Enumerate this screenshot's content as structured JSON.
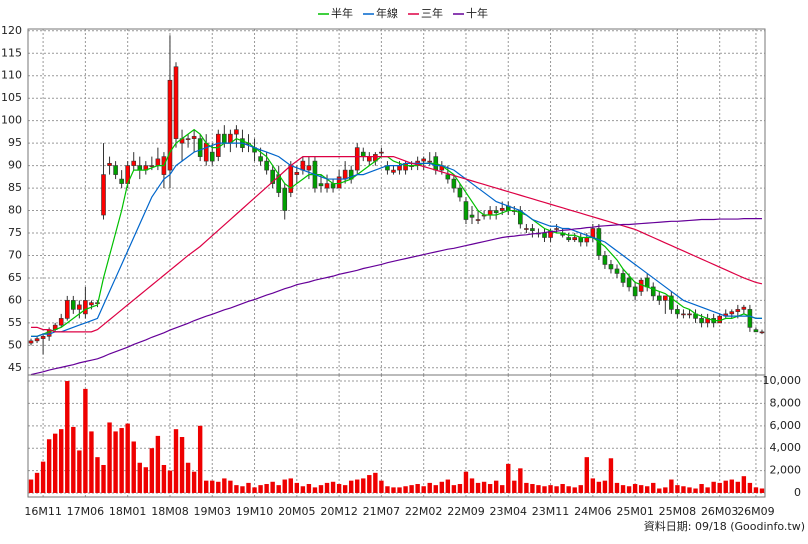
{
  "chart_data": [
    {
      "type": "candlestick",
      "categories": [
        null,
        null,
        "16M11",
        null,
        null,
        null,
        null,
        null,
        null,
        "17M06",
        null,
        null,
        null,
        null,
        null,
        null,
        "18M01",
        null,
        null,
        null,
        null,
        null,
        null,
        "18M08",
        null,
        null,
        null,
        null,
        null,
        null,
        "19M03",
        null,
        null,
        null,
        null,
        null,
        null,
        "19M10",
        null,
        null,
        null,
        null,
        null,
        null,
        "20M05",
        null,
        null,
        null,
        null,
        null,
        null,
        "20M12",
        null,
        null,
        null,
        null,
        null,
        null,
        "21M07",
        null,
        null,
        null,
        null,
        null,
        null,
        "22M02",
        null,
        null,
        null,
        null,
        null,
        null,
        "22M09",
        null,
        null,
        null,
        null,
        null,
        null,
        "23M04",
        null,
        null,
        null,
        null,
        null,
        null,
        "23M11",
        null,
        null,
        null,
        null,
        null,
        null,
        "24M06",
        null,
        null,
        null,
        null,
        null,
        null,
        "25M01",
        null,
        null,
        null,
        null,
        null,
        null,
        "25M08",
        null,
        null,
        null,
        null,
        null,
        null,
        "26M03",
        null,
        null,
        null,
        null,
        null,
        "26M09",
        null
      ],
      "open": [
        50.5,
        51,
        51.5,
        52,
        53.5,
        54.5,
        56,
        60,
        58,
        57,
        59,
        59.5,
        79,
        90,
        90,
        87,
        86,
        90,
        90,
        89,
        90,
        90,
        88,
        89,
        96,
        95,
        96,
        96,
        96,
        91,
        93,
        92,
        97,
        95,
        97,
        96,
        95,
        94,
        92,
        91,
        89,
        88,
        85,
        84,
        88,
        89,
        89,
        91,
        86,
        85,
        86,
        85,
        87,
        89,
        89,
        93,
        91,
        91,
        93,
        90,
        88.5,
        89,
        89,
        90,
        90,
        91,
        91,
        92,
        89,
        88,
        87,
        85,
        82,
        79,
        78,
        79,
        79,
        80,
        80,
        81,
        80,
        80,
        76,
        76,
        75,
        75,
        74,
        76,
        75,
        74,
        73.5,
        74,
        73,
        74,
        76,
        70,
        68,
        67,
        66,
        65,
        63,
        62,
        65,
        63,
        61,
        60,
        61,
        58,
        57,
        57,
        57,
        56,
        55,
        56,
        55,
        56.5,
        57,
        57.5,
        58,
        58,
        53.5,
        53
      ],
      "high": [
        51.5,
        52,
        52.5,
        54,
        55,
        57,
        61,
        61,
        60,
        63,
        60,
        60,
        95,
        92,
        91,
        89,
        91,
        93,
        92,
        91,
        92,
        94,
        93,
        119,
        113,
        98,
        97,
        98,
        97,
        97,
        95,
        98,
        99,
        98,
        99,
        98,
        97,
        96,
        94,
        93,
        90,
        90,
        86,
        91,
        90,
        92,
        92,
        92,
        88,
        88,
        87,
        89,
        91,
        90,
        95,
        94,
        93,
        93,
        94,
        91,
        90,
        91,
        91,
        91,
        92,
        92,
        93,
        93,
        91,
        90,
        88,
        86,
        83,
        81,
        80,
        80,
        81,
        81,
        82,
        82,
        81,
        81,
        77,
        77,
        76,
        76,
        76,
        77,
        76,
        75,
        75,
        75,
        75,
        77,
        77,
        71,
        69,
        68,
        67,
        66,
        64,
        65,
        66,
        64,
        62,
        61,
        62,
        59,
        58,
        58,
        58,
        57,
        57,
        57,
        57,
        58,
        58,
        59,
        59,
        59,
        54,
        53.5
      ],
      "low": [
        50,
        50.5,
        48,
        51,
        53,
        54,
        55.5,
        57,
        56,
        56,
        58,
        58.5,
        78,
        88,
        87,
        85,
        85,
        89,
        87,
        88,
        89,
        89,
        85,
        85,
        94,
        91,
        94,
        93,
        91,
        90,
        90,
        91,
        94,
        93,
        94,
        93,
        93,
        91,
        90,
        88,
        85,
        83,
        78,
        83,
        86,
        88,
        87,
        84,
        84,
        84,
        84,
        85,
        86,
        86,
        88,
        91,
        90,
        90,
        92,
        88,
        88,
        88,
        88,
        89,
        89,
        89,
        90,
        88,
        88,
        86,
        84,
        82,
        77,
        77,
        77,
        78,
        78,
        78,
        79,
        79,
        79,
        76,
        75,
        74,
        74,
        73,
        73,
        75,
        74,
        73,
        73,
        72,
        72,
        73,
        69,
        67,
        66,
        65,
        63,
        62,
        60,
        61,
        62,
        60,
        59,
        57,
        57,
        56,
        56,
        56,
        55,
        54,
        54,
        54,
        55,
        56,
        56,
        56,
        57,
        53,
        53,
        52.5
      ],
      "close": [
        51,
        51.5,
        52,
        53.5,
        54.5,
        56,
        60,
        58,
        59,
        60,
        59.5,
        59.5,
        88,
        90.5,
        88,
        86,
        90,
        91,
        89,
        90,
        90,
        91.5,
        92,
        109,
        112,
        96,
        96,
        96.5,
        92,
        95,
        91,
        97,
        95,
        97,
        98,
        94,
        95,
        93,
        91,
        89,
        86,
        84,
        80,
        90,
        88.5,
        91,
        90,
        85,
        85.5,
        86,
        85,
        87.5,
        89,
        87,
        94,
        92,
        92,
        92.5,
        93,
        89,
        89,
        90,
        90.5,
        90,
        91,
        91.5,
        91,
        89,
        90,
        87,
        85,
        83,
        78,
        78.5,
        78,
        79,
        80,
        79.5,
        80.5,
        80,
        80,
        77,
        76,
        75.5,
        75,
        74,
        75.5,
        76,
        74.5,
        73.5,
        74,
        73,
        74,
        76,
        70,
        68,
        67,
        66,
        64,
        63,
        61,
        64.5,
        63,
        61,
        60,
        61,
        58,
        57,
        57,
        57,
        56,
        55,
        56,
        55,
        56.5,
        57,
        57.5,
        58,
        58.5,
        54,
        53,
        53
      ],
      "up_color": "#ff0000",
      "down_color": "#00a000",
      "series": [
        {
          "name": "半年",
          "color": "#00c000",
          "values": [
            52,
            52,
            52.5,
            53,
            53.5,
            54,
            55,
            56,
            57,
            58,
            58.5,
            59,
            65,
            70,
            75,
            80,
            86,
            89,
            89,
            89,
            89.5,
            90,
            90,
            93,
            95,
            96,
            97,
            98,
            97,
            95,
            94,
            94,
            95,
            95,
            96,
            95.5,
            95,
            94,
            93,
            92,
            90,
            88,
            86,
            85,
            86,
            87,
            88,
            88,
            88,
            87,
            86,
            86,
            86.5,
            87,
            88,
            89,
            90,
            91,
            92,
            92,
            91,
            90.5,
            90,
            90,
            90,
            90.5,
            90.5,
            90.5,
            90,
            89,
            88,
            86,
            84,
            82,
            80,
            79,
            79,
            79,
            79.5,
            80,
            80,
            79.5,
            79,
            78,
            77,
            76,
            75.5,
            75,
            75,
            74.5,
            74.5,
            74,
            74,
            74,
            73,
            72,
            70.5,
            69,
            67,
            65.5,
            64,
            63.5,
            63,
            62.5,
            62,
            61.5,
            60.5,
            59.5,
            58.5,
            58,
            57,
            56.5,
            56,
            55.5,
            55.5,
            56,
            56,
            56.5,
            57,
            56.5,
            56,
            56
          ]
        },
        {
          "name": "年線",
          "color": "#0066cc",
          "values": [
            52,
            52,
            52.5,
            52.5,
            53,
            53,
            53.5,
            54,
            54.5,
            55,
            55.5,
            56,
            59,
            62,
            65,
            68,
            71,
            74,
            77,
            80,
            83,
            85,
            87,
            88,
            90,
            91,
            92,
            93,
            93.5,
            94,
            94.5,
            95,
            95,
            95,
            95,
            95,
            94.5,
            94,
            93.5,
            93,
            92.5,
            92,
            91,
            90,
            89.5,
            89,
            88.5,
            88,
            87.5,
            87,
            87,
            87,
            87,
            87.5,
            88,
            88,
            88.5,
            89,
            89.5,
            90,
            90,
            90,
            90.5,
            90.5,
            90.5,
            90.5,
            90.5,
            90,
            90,
            89.5,
            89,
            88,
            87,
            86,
            85,
            84,
            83,
            82,
            81.5,
            81,
            80.5,
            80,
            79,
            78,
            77.5,
            77,
            76.5,
            76.5,
            76,
            76,
            75.5,
            75,
            74.5,
            74,
            73.5,
            73,
            72,
            71,
            70,
            69,
            68,
            67,
            66,
            65,
            64,
            63,
            62,
            61,
            60,
            59.5,
            59,
            58.5,
            58,
            57.5,
            57,
            56.5,
            56.5,
            56.5,
            56.5,
            56.5,
            56,
            56
          ]
        },
        {
          "name": "三年",
          "color": "#dd0044",
          "values": [
            54,
            54,
            53.5,
            53.5,
            53,
            53,
            53,
            53,
            53,
            53,
            53,
            53.5,
            54.6,
            55.7,
            56.8,
            57.9,
            59,
            60.1,
            61.2,
            62.3,
            63.4,
            64.5,
            65.6,
            66.7,
            67.8,
            68.9,
            70,
            71,
            72,
            73.2,
            74.4,
            75.6,
            76.8,
            78,
            79.2,
            80.4,
            81.6,
            82.8,
            84,
            85.2,
            86.4,
            87.6,
            88.8,
            90,
            91,
            92,
            92,
            92,
            92,
            92,
            92,
            92,
            92,
            92,
            92,
            92,
            92,
            92,
            92,
            92,
            92,
            91.5,
            91,
            90.5,
            90.2,
            89.8,
            89.4,
            89,
            88.6,
            88.2,
            87.8,
            87.4,
            87,
            86.6,
            86.2,
            85.8,
            85.4,
            85,
            84.6,
            84.2,
            83.8,
            83.4,
            83,
            82.6,
            82.2,
            81.8,
            81.4,
            81,
            80.6,
            80.2,
            79.8,
            79.4,
            79,
            78.6,
            78.2,
            77.8,
            77.4,
            77,
            76.6,
            76.2,
            75.8,
            75.2,
            74.6,
            74,
            73.4,
            72.8,
            72.2,
            71.6,
            71,
            70.4,
            69.8,
            69.2,
            68.6,
            68,
            67.4,
            66.8,
            66.2,
            65.6,
            65,
            64.5,
            64,
            63.7
          ]
        },
        {
          "name": "十年",
          "color": "#660099",
          "values": [
            43.5,
            43.8,
            44.1,
            44.5,
            44.8,
            45.1,
            45.4,
            45.7,
            46.1,
            46.4,
            46.7,
            47,
            47.5,
            48.1,
            48.6,
            49.1,
            49.6,
            50.2,
            50.7,
            51.2,
            51.8,
            52.3,
            52.8,
            53.4,
            53.9,
            54.4,
            54.9,
            55.5,
            56,
            56.5,
            56.9,
            57.4,
            57.9,
            58.3,
            58.8,
            59.3,
            59.8,
            60.2,
            60.7,
            61.2,
            61.6,
            62.1,
            62.6,
            63,
            63.5,
            63.8,
            64.1,
            64.5,
            64.8,
            65.1,
            65.4,
            65.8,
            66.1,
            66.4,
            66.7,
            67.1,
            67.4,
            67.7,
            68,
            68.4,
            68.7,
            69,
            69.3,
            69.6,
            69.9,
            70.2,
            70.5,
            70.8,
            71.1,
            71.4,
            71.6,
            71.9,
            72.2,
            72.5,
            72.8,
            73.1,
            73.4,
            73.7,
            74,
            74.2,
            74.3,
            74.5,
            74.6,
            74.8,
            74.9,
            75.1,
            75.3,
            75.4,
            75.6,
            75.7,
            75.9,
            76,
            76.2,
            76.3,
            76.5,
            76.6,
            76.7,
            76.8,
            76.9,
            76.9,
            77,
            77.1,
            77.2,
            77.3,
            77.4,
            77.5,
            77.6,
            77.6,
            77.7,
            77.8,
            77.9,
            78,
            78,
            78,
            78.1,
            78.1,
            78.1,
            78.1,
            78.2,
            78.2,
            78.2,
            78.2
          ]
        }
      ],
      "ylim": [
        43.4,
        120.4
      ],
      "yticks": [
        45,
        50,
        55,
        60,
        65,
        70,
        75,
        80,
        85,
        90,
        95,
        100,
        105,
        110,
        115,
        120
      ],
      "grid": true,
      "legend": "top",
      "annotation": "資料日期: 09/18  (Goodinfo.tw)"
    },
    {
      "type": "bar",
      "values": [
        1200,
        1800,
        2800,
        4800,
        5300,
        5700,
        10000,
        5900,
        3800,
        9300,
        5500,
        3200,
        2500,
        6300,
        5500,
        5800,
        6200,
        4600,
        2700,
        2300,
        4000,
        5100,
        2500,
        2000,
        5700,
        5000,
        2700,
        1900,
        6000,
        1100,
        1100,
        1000,
        1300,
        1100,
        700,
        600,
        900,
        500,
        700,
        800,
        1000,
        700,
        1200,
        1300,
        900,
        600,
        800,
        500,
        700,
        900,
        1000,
        800,
        700,
        1100,
        1200,
        1300,
        1600,
        1800,
        1100,
        600,
        500,
        500,
        600,
        700,
        800,
        600,
        900,
        700,
        1000,
        1200,
        700,
        800,
        1900,
        1300,
        900,
        1000,
        800,
        1100,
        700,
        2600,
        1100,
        2200,
        900,
        800,
        700,
        600,
        700,
        600,
        800,
        600,
        500,
        700,
        3200,
        1300,
        1000,
        1100,
        3100,
        900,
        700,
        600,
        800,
        700,
        600,
        900,
        400,
        500,
        1200,
        700,
        600,
        500,
        400,
        800,
        500,
        1000,
        900,
        1100,
        1200,
        1000,
        1500,
        900,
        500,
        400
      ],
      "color": "#ee0000",
      "ylim": [
        -360,
        10540
      ],
      "yticks": [
        0,
        {
          "value": 2000,
          "label": "2,000"
        },
        {
          "value": 4000,
          "label": "4,000"
        },
        {
          "value": 6000,
          "label": "6,000"
        },
        {
          "value": 8000,
          "label": "8,000"
        },
        {
          "value": 10000,
          "label": "10,000"
        }
      ],
      "grid": true
    }
  ]
}
